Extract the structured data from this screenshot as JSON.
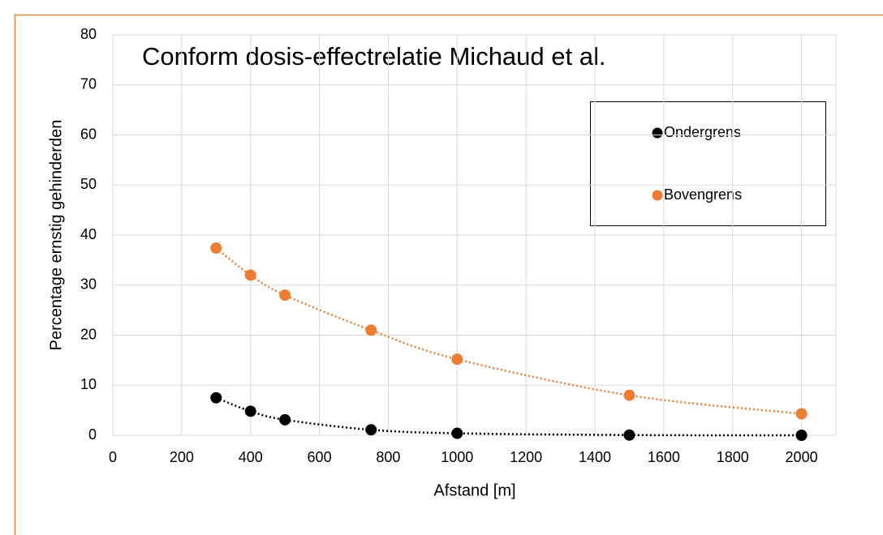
{
  "chart_data": {
    "type": "scatter",
    "title": "Conform dosis-effectrelatie Michaud et al.",
    "x_label": "Afstand [m]",
    "y_label": "Percentage ernstig gehinderden",
    "series": [
      {
        "name": "Ondergrens",
        "color": "#000000",
        "x": [
          300,
          400,
          500,
          750,
          1000,
          1500,
          2000
        ],
        "values": [
          7.5,
          4.8,
          3.1,
          1.1,
          0.4,
          0.05,
          0.0
        ]
      },
      {
        "name": "Bovengrens",
        "color": "#ed7d31",
        "x": [
          300,
          400,
          500,
          750,
          1000,
          1500,
          2000
        ],
        "values": [
          37.4,
          32,
          28,
          21,
          15.2,
          8,
          4.3
        ]
      }
    ],
    "xlim": [
      0,
      2100
    ],
    "xticks": [
      0,
      200,
      400,
      600,
      800,
      1000,
      1200,
      1400,
      1600,
      1800,
      2000
    ],
    "ylim": [
      0,
      80
    ],
    "yticks": [
      0,
      10,
      20,
      30,
      40,
      50,
      60,
      70,
      80
    ],
    "grid": true,
    "trendline": true
  }
}
